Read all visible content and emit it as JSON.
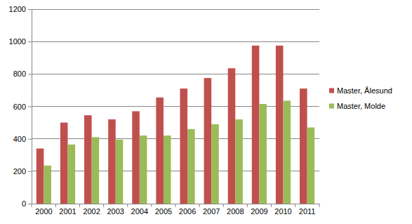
{
  "chart_data": {
    "type": "bar",
    "categories": [
      "2000",
      "2001",
      "2002",
      "2003",
      "2004",
      "2005",
      "2006",
      "2007",
      "2008",
      "2009",
      "2010",
      "2011"
    ],
    "series": [
      {
        "name": "Master, Ålesund",
        "color": "#c0504d",
        "values": [
          340,
          500,
          545,
          520,
          570,
          655,
          710,
          775,
          835,
          975,
          975,
          710
        ]
      },
      {
        "name": "Master, Molde",
        "color": "#9bbb59",
        "values": [
          235,
          365,
          410,
          395,
          420,
          420,
          460,
          490,
          520,
          615,
          635,
          470
        ]
      }
    ],
    "ylim": [
      0,
      1200
    ],
    "yticks": [
      0,
      200,
      400,
      600,
      800,
      1000,
      1200
    ],
    "grid": true,
    "legend": "right"
  }
}
